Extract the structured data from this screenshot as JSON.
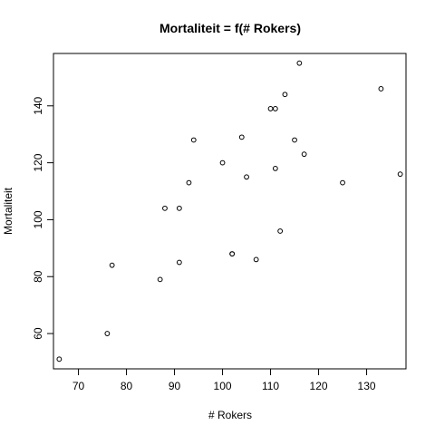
{
  "chart_data": {
    "type": "scatter",
    "title": "Mortaliteit = f(# Rokers)",
    "xlabel": "# Rokers",
    "ylabel": "Mortaliteit",
    "xlim": [
      64.8,
      138.2
    ],
    "ylim": [
      47.6,
      158.4
    ],
    "xticks": [
      70,
      80,
      90,
      100,
      110,
      120,
      130
    ],
    "yticks": [
      60,
      80,
      100,
      120,
      140
    ],
    "grid": false,
    "legend": "none",
    "points": [
      {
        "x": 77,
        "y": 84
      },
      {
        "x": 137,
        "y": 116
      },
      {
        "x": 117,
        "y": 123
      },
      {
        "x": 94,
        "y": 128
      },
      {
        "x": 116,
        "y": 155
      },
      {
        "x": 102,
        "y": 88
      },
      {
        "x": 111,
        "y": 139
      },
      {
        "x": 93,
        "y": 113
      },
      {
        "x": 88,
        "y": 104
      },
      {
        "x": 102,
        "y": 88
      },
      {
        "x": 91,
        "y": 104
      },
      {
        "x": 104,
        "y": 129
      },
      {
        "x": 107,
        "y": 86
      },
      {
        "x": 112,
        "y": 96
      },
      {
        "x": 113,
        "y": 144
      },
      {
        "x": 110,
        "y": 139
      },
      {
        "x": 125,
        "y": 113
      },
      {
        "x": 133,
        "y": 146
      },
      {
        "x": 115,
        "y": 128
      },
      {
        "x": 105,
        "y": 115
      },
      {
        "x": 87,
        "y": 79
      },
      {
        "x": 91,
        "y": 85
      },
      {
        "x": 100,
        "y": 120
      },
      {
        "x": 76,
        "y": 60
      },
      {
        "x": 66,
        "y": 51
      },
      {
        "x": 111,
        "y": 118
      }
    ]
  }
}
